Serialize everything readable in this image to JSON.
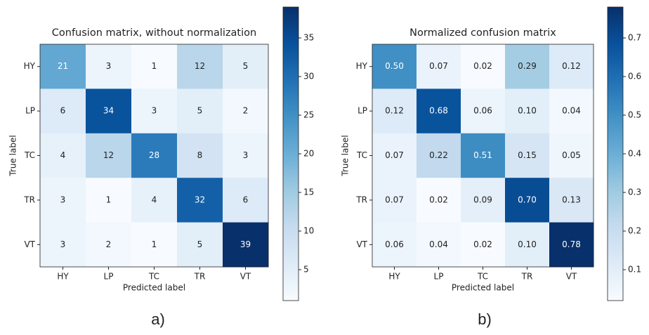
{
  "chart_data": [
    {
      "type": "heatmap",
      "title": "Confusion matrix, without normalization",
      "caption": "a)",
      "x_label": "Predicted label",
      "y_label": "True label",
      "x_categories": [
        "HY",
        "LP",
        "TC",
        "TR",
        "VT"
      ],
      "y_categories": [
        "HY",
        "LP",
        "TC",
        "TR",
        "VT"
      ],
      "values": [
        [
          21,
          3,
          1,
          12,
          5
        ],
        [
          6,
          34,
          3,
          5,
          2
        ],
        [
          4,
          12,
          28,
          8,
          3
        ],
        [
          3,
          1,
          4,
          32,
          6
        ],
        [
          3,
          2,
          1,
          5,
          39
        ]
      ],
      "colormap": "Blues",
      "colorbar_lim": [
        1,
        39
      ],
      "colorbar_ticks": [
        5,
        10,
        15,
        20,
        25,
        30,
        35
      ]
    },
    {
      "type": "heatmap",
      "title": "Normalized confusion matrix",
      "caption": "b)",
      "x_label": "Predicted label",
      "y_label": "True label",
      "x_categories": [
        "HY",
        "LP",
        "TC",
        "TR",
        "VT"
      ],
      "y_categories": [
        "HY",
        "LP",
        "TC",
        "TR",
        "VT"
      ],
      "values": [
        [
          0.5,
          0.07,
          0.02,
          0.29,
          0.12
        ],
        [
          0.12,
          0.68,
          0.06,
          0.1,
          0.04
        ],
        [
          0.07,
          0.22,
          0.51,
          0.15,
          0.05
        ],
        [
          0.07,
          0.02,
          0.09,
          0.7,
          0.13
        ],
        [
          0.06,
          0.04,
          0.02,
          0.1,
          0.78
        ]
      ],
      "value_labels": [
        [
          "0.50",
          "0.07",
          "0.02",
          "0.29",
          "0.12"
        ],
        [
          "0.12",
          "0.68",
          "0.06",
          "0.10",
          "0.04"
        ],
        [
          "0.07",
          "0.22",
          "0.51",
          "0.15",
          "0.05"
        ],
        [
          "0.07",
          "0.02",
          "0.09",
          "0.70",
          "0.13"
        ],
        [
          "0.06",
          "0.04",
          "0.02",
          "0.10",
          "0.78"
        ]
      ],
      "colormap": "Blues",
      "colorbar_lim": [
        0.02,
        0.78
      ],
      "colorbar_ticks": [
        0.1,
        0.2,
        0.3,
        0.4,
        0.5,
        0.6,
        0.7
      ]
    }
  ]
}
